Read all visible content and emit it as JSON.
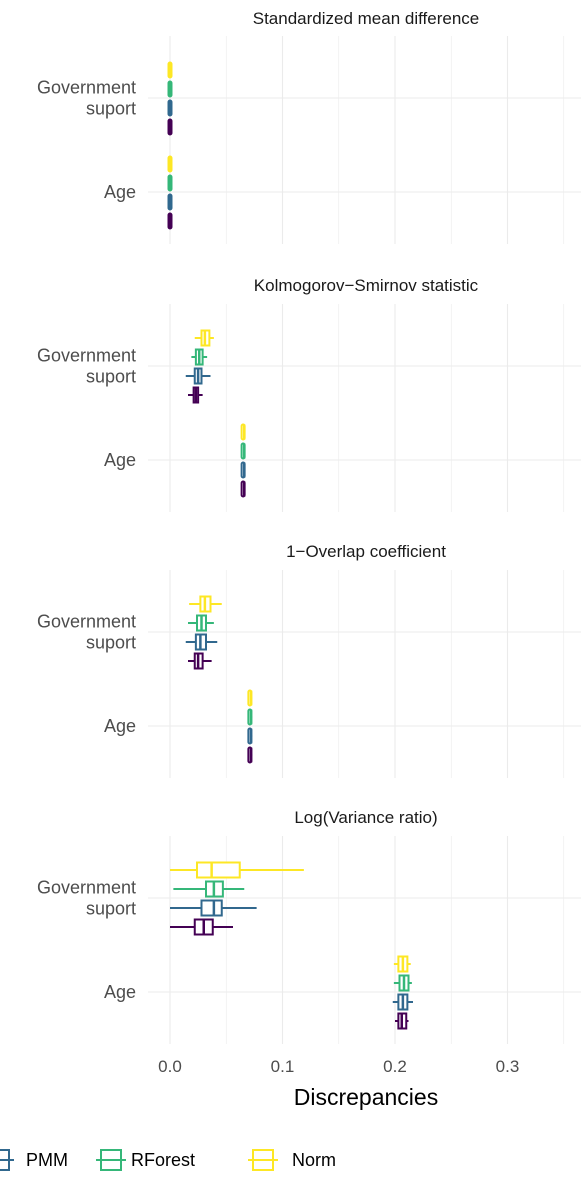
{
  "chart_data": {
    "type": "boxplot",
    "facets": [
      "Standardized mean difference",
      "Kolmogorov−Smirnov statistic",
      "1−Overlap coefficient",
      "Log(Variance ratio)"
    ],
    "categories": [
      {
        "label_lines": [
          "Government",
          "suport"
        ]
      },
      {
        "label_lines": [
          "Age"
        ]
      }
    ],
    "xlabel": "Discrepancies",
    "xlim": [
      -0.012,
      0.362
    ],
    "xticks": [
      "0.0",
      "0.1",
      "0.2",
      "0.3"
    ],
    "xtick_values": [
      0.0,
      0.1,
      0.2,
      0.3
    ],
    "grid": true,
    "legend_position": "bottom",
    "series": [
      {
        "name": "PMM",
        "color": "#31688e"
      },
      {
        "name": "RForest",
        "color": "#35b779"
      },
      {
        "name": "Norm",
        "color": "#fde725"
      }
    ],
    "unlabeled_series_color": "#440154",
    "boxes": [
      [
        [
          {
            "min": 0.0,
            "q1": 0.0,
            "median": 0.0,
            "q3": 0.0,
            "max": 0.0
          },
          {
            "min": 0.0,
            "q1": 0.0,
            "median": 0.0,
            "q3": 0.0,
            "max": 0.0
          },
          {
            "min": 0.0,
            "q1": 0.0,
            "median": 0.0,
            "q3": 0.0,
            "max": 0.0
          },
          {
            "min": 0.0,
            "q1": 0.0,
            "median": 0.0,
            "q3": 0.0,
            "max": 0.0
          }
        ],
        [
          {
            "min": 0.0,
            "q1": 0.0,
            "median": 0.0,
            "q3": 0.0,
            "max": 0.0
          },
          {
            "min": 0.0,
            "q1": 0.0,
            "median": 0.0,
            "q3": 0.0,
            "max": 0.0
          },
          {
            "min": 0.0,
            "q1": 0.0,
            "median": 0.0,
            "q3": 0.0,
            "max": 0.0
          },
          {
            "min": 0.0,
            "q1": 0.0,
            "median": 0.0,
            "q3": 0.0,
            "max": 0.0
          }
        ]
      ],
      [
        [
          {
            "min": 0.016,
            "q1": 0.021,
            "median": 0.023,
            "q3": 0.025,
            "max": 0.029
          },
          {
            "min": 0.014,
            "q1": 0.022,
            "median": 0.025,
            "q3": 0.028,
            "max": 0.036
          },
          {
            "min": 0.019,
            "q1": 0.023,
            "median": 0.026,
            "q3": 0.029,
            "max": 0.033
          },
          {
            "min": 0.022,
            "q1": 0.028,
            "median": 0.031,
            "q3": 0.035,
            "max": 0.039
          }
        ],
        [
          {
            "min": 0.065,
            "q1": 0.065,
            "median": 0.066,
            "q3": 0.066,
            "max": 0.067
          },
          {
            "min": 0.065,
            "q1": 0.065,
            "median": 0.066,
            "q3": 0.066,
            "max": 0.067
          },
          {
            "min": 0.065,
            "q1": 0.065,
            "median": 0.066,
            "q3": 0.066,
            "max": 0.067
          },
          {
            "min": 0.065,
            "q1": 0.065,
            "median": 0.066,
            "q3": 0.066,
            "max": 0.067
          }
        ]
      ],
      [
        [
          {
            "min": 0.016,
            "q1": 0.022,
            "median": 0.025,
            "q3": 0.029,
            "max": 0.037
          },
          {
            "min": 0.014,
            "q1": 0.023,
            "median": 0.027,
            "q3": 0.032,
            "max": 0.042
          },
          {
            "min": 0.016,
            "q1": 0.024,
            "median": 0.028,
            "q3": 0.032,
            "max": 0.039
          },
          {
            "min": 0.017,
            "q1": 0.027,
            "median": 0.031,
            "q3": 0.036,
            "max": 0.046
          }
        ],
        [
          {
            "min": 0.071,
            "q1": 0.071,
            "median": 0.072,
            "q3": 0.072,
            "max": 0.073
          },
          {
            "min": 0.071,
            "q1": 0.071,
            "median": 0.072,
            "q3": 0.072,
            "max": 0.073
          },
          {
            "min": 0.071,
            "q1": 0.071,
            "median": 0.072,
            "q3": 0.072,
            "max": 0.073
          },
          {
            "min": 0.071,
            "q1": 0.071,
            "median": 0.072,
            "q3": 0.072,
            "max": 0.073
          }
        ]
      ],
      [
        [
          {
            "min": 0.0,
            "q1": 0.022,
            "median": 0.03,
            "q3": 0.038,
            "max": 0.056
          },
          {
            "min": 0.0,
            "q1": 0.028,
            "median": 0.039,
            "q3": 0.046,
            "max": 0.077
          },
          {
            "min": 0.003,
            "q1": 0.032,
            "median": 0.039,
            "q3": 0.047,
            "max": 0.066
          },
          {
            "min": 0.0,
            "q1": 0.024,
            "median": 0.037,
            "q3": 0.062,
            "max": 0.119
          }
        ],
        [
          {
            "min": 0.2,
            "q1": 0.203,
            "median": 0.206,
            "q3": 0.21,
            "max": 0.212
          },
          {
            "min": 0.198,
            "q1": 0.203,
            "median": 0.207,
            "q3": 0.211,
            "max": 0.216
          },
          {
            "min": 0.199,
            "q1": 0.204,
            "median": 0.208,
            "q3": 0.212,
            "max": 0.215
          },
          {
            "min": 0.199,
            "q1": 0.203,
            "median": 0.207,
            "q3": 0.211,
            "max": 0.214
          }
        ]
      ]
    ]
  }
}
